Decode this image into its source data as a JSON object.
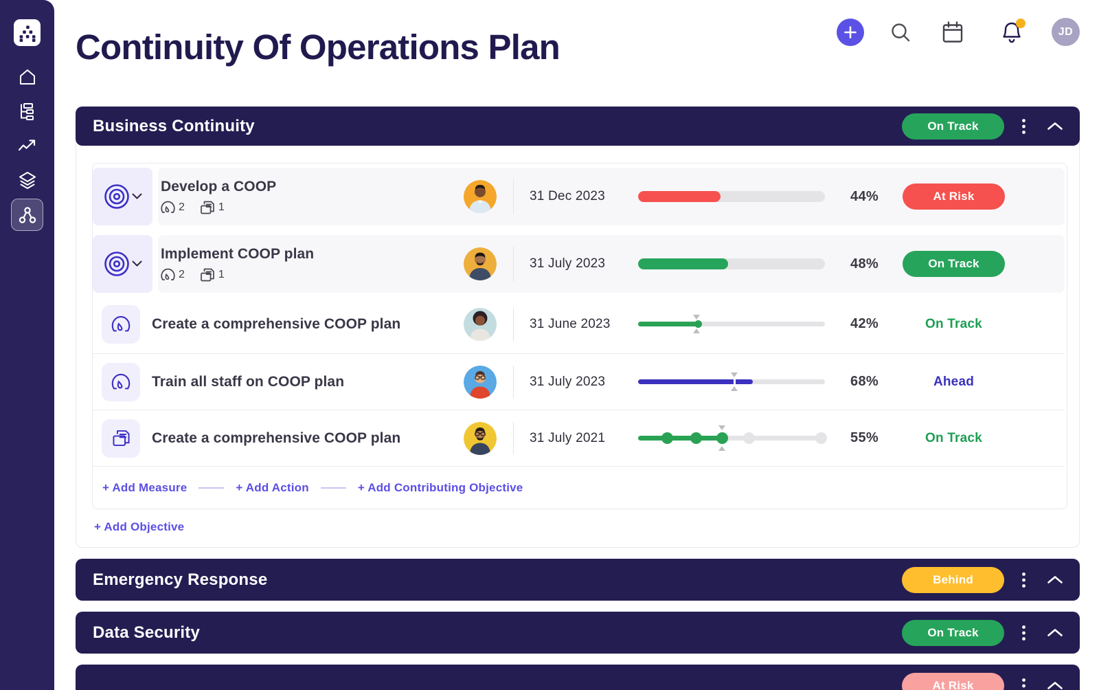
{
  "header": {
    "title": "Continuity Of Operations Plan",
    "user_initials": "JD"
  },
  "topbar_icons": [
    "plus-button",
    "search-icon",
    "calendar-icon",
    "bell-icon-with-badge",
    "user-avatar"
  ],
  "sidebar_icons": [
    "brand-logo",
    "home-icon",
    "hierarchy-icon",
    "trend-icon",
    "layers-icon",
    "network-icon-active"
  ],
  "colors": {
    "navy": "#241D52",
    "sidebar": "#272060",
    "accent_indigo": "#5B51E5",
    "icon_indigo": "#3C2FC5",
    "green": "#27A45B",
    "green_text": "#1E9E53",
    "red": "#F6514E",
    "amber": "#FFBE2D",
    "salmon": "#F8A19F",
    "ahead_indigo": "#3B31BE",
    "track_gray": "#E4E4E6"
  },
  "sections": [
    {
      "title": "Business Continuity",
      "status": "On Track",
      "objectives": [
        {
          "title": "Develop a COOP",
          "measure_count": "2",
          "doc_count": "1",
          "date": "31 Dec 2023",
          "percent": "44%",
          "fill": 44,
          "status": "At Risk"
        },
        {
          "title": "Implement COOP plan",
          "measure_count": "2",
          "doc_count": "1",
          "date": "31 July 2023",
          "percent": "48%",
          "fill": 48,
          "status": "On Track"
        }
      ],
      "children": [
        {
          "title": "Create a comprehensive COOP plan",
          "date": "31 June 2023",
          "percent": "42%",
          "fill": 32,
          "marker": 31.5,
          "status": "On Track"
        },
        {
          "title": "Train all staff on COOP plan",
          "date": "31 July 2023",
          "percent": "68%",
          "fill": 61.5,
          "marker": 51.5,
          "status": "Ahead"
        },
        {
          "title": "Create a comprehensive COOP plan",
          "date": "31 July 2021",
          "percent": "55%",
          "fill": 45,
          "marker": 45,
          "milestones_done": [
            15.5,
            31,
            45
          ],
          "milestones_todo": [
            59.5,
            98
          ],
          "status": "On Track"
        }
      ],
      "add_links": [
        "+ Add Measure",
        "+ Add Action",
        "+ Add Contributing Objective"
      ],
      "add_objective": "+ Add Objective"
    },
    {
      "title": "Emergency Response",
      "status": "Behind"
    },
    {
      "title": "Data Security",
      "status": "On Track"
    },
    {
      "title": "",
      "status": "At Risk"
    }
  ]
}
